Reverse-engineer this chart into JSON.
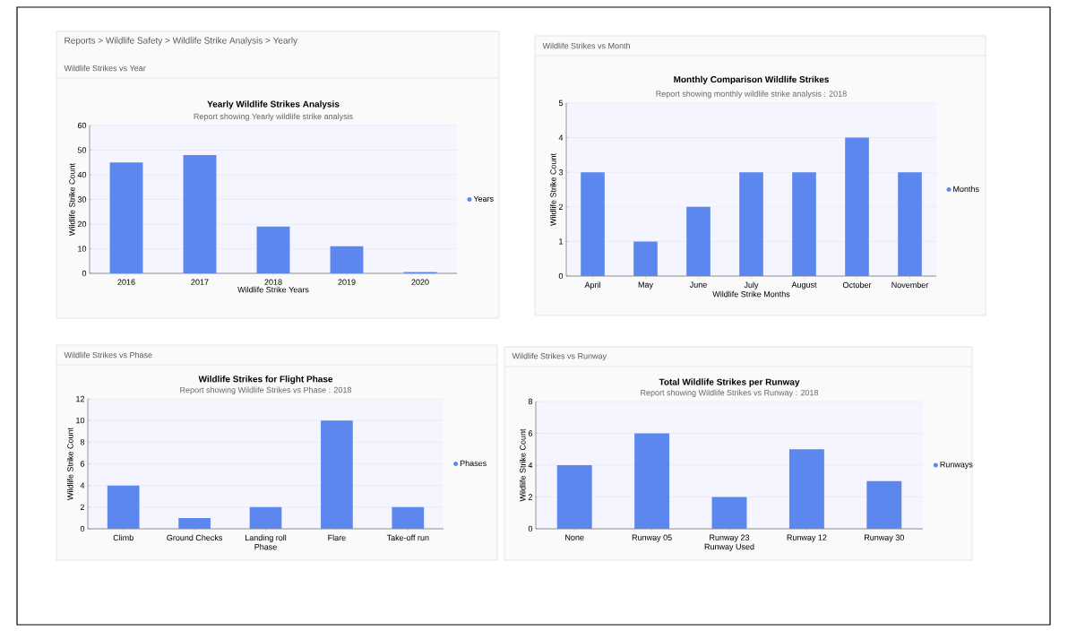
{
  "chart_data": [
    {
      "type": "bar",
      "title": "Yearly Wildlife Strikes Analysis",
      "subtitle": "Report showing Yearly wildlife strike analysis",
      "xlabel": "Wildlife Strike Years",
      "ylabel": "Wildlife Strike Count",
      "annotations": [
        "Reports > Wildlife Safety > Wildlife Strike Analysis > Yearly",
        "Wildlife Strikes vs Year"
      ],
      "categories": [
        "2016",
        "2017",
        "2018",
        "2019",
        "2020"
      ],
      "series": [
        {
          "name": "Years",
          "color": "#5b87ef",
          "values": [
            45,
            48,
            19,
            11,
            0.5
          ]
        }
      ],
      "ylim": [
        0,
        60
      ],
      "yticks": [
        0,
        10,
        20,
        30,
        40,
        50,
        60
      ],
      "grid": "y",
      "legend": "right"
    },
    {
      "type": "bar",
      "title": "Monthly Comparison Wildlife Strikes",
      "subtitle": "Report showing monthly wildlife strike analysis : 2018",
      "xlabel": "Wildlife Strike Months",
      "ylabel": "Wildlife Strike Count",
      "annotations": [
        "Wildlife Strikes vs Month"
      ],
      "categories": [
        "April",
        "May",
        "June",
        "July",
        "August",
        "October",
        "November"
      ],
      "series": [
        {
          "name": "Months",
          "color": "#5b87ef",
          "values": [
            3,
            1,
            2,
            3,
            3,
            4,
            3
          ]
        }
      ],
      "ylim": [
        0,
        5
      ],
      "yticks": [
        0,
        1,
        2,
        3,
        4,
        5
      ],
      "grid": "y",
      "legend": "right"
    },
    {
      "type": "bar",
      "title": "Wildlife Strikes for Flight Phase",
      "subtitle": "Report showing Wildlife Strikes vs Phase : 2018",
      "xlabel": "Phase",
      "ylabel": "Wildlife Strike Count",
      "annotations": [
        "Wildlife Strikes vs Phase"
      ],
      "categories": [
        "Climb",
        "Ground Checks",
        "Landing roll",
        "Flare",
        "Take-off run"
      ],
      "series": [
        {
          "name": "Phases",
          "color": "#5b87ef",
          "values": [
            4,
            1,
            2,
            10,
            2
          ]
        }
      ],
      "ylim": [
        0,
        12
      ],
      "yticks": [
        0,
        2,
        4,
        6,
        8,
        10,
        12
      ],
      "grid": "y",
      "legend": "right"
    },
    {
      "type": "bar",
      "title": "Total Wildlife Strikes per Runway",
      "subtitle": "Report showing Wildlife Strikes vs Runway : 2018",
      "xlabel": "Runway Used",
      "ylabel": "Wildlife Strike Count",
      "annotations": [
        "Wildlife Strikes vs Runway"
      ],
      "categories": [
        "None",
        "Runway 05",
        "Runway 23",
        "Runway 12",
        "Runway 30"
      ],
      "series": [
        {
          "name": "Runways",
          "color": "#5b87ef",
          "values": [
            4,
            6,
            2,
            5,
            3
          ]
        }
      ],
      "ylim": [
        0,
        8
      ],
      "yticks": [
        0,
        2,
        4,
        6,
        8
      ],
      "grid": "y",
      "legend": "right"
    }
  ]
}
